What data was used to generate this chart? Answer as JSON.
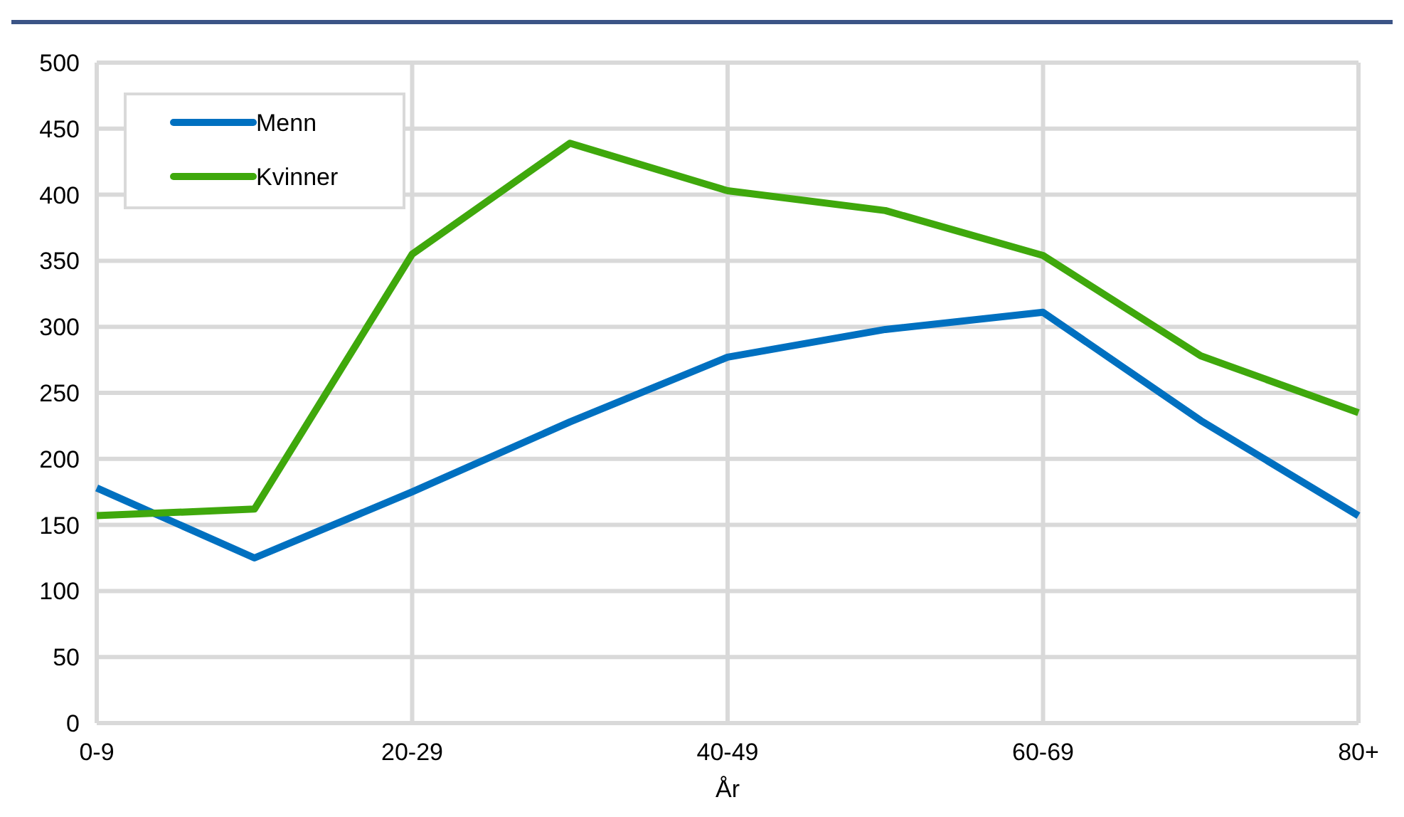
{
  "chart_data": {
    "type": "line",
    "xlabel": "År",
    "categories": [
      "0-9",
      null,
      "20-29",
      null,
      "40-49",
      null,
      "60-69",
      null,
      "80+"
    ],
    "series": [
      {
        "name": "Menn",
        "color": "#0070c0",
        "values": [
          178,
          125,
          175,
          228,
          277,
          298,
          311,
          229,
          157
        ]
      },
      {
        "name": "Kvinner",
        "color": "#3fa80c",
        "values": [
          157,
          162,
          355,
          439,
          403,
          388,
          354,
          278,
          235
        ]
      }
    ],
    "ylim": [
      0,
      500
    ],
    "yticks": [
      0,
      50,
      100,
      150,
      200,
      250,
      300,
      350,
      400,
      450,
      500
    ],
    "grid": true,
    "legend": "top left",
    "line_style": "solid",
    "marker": "none"
  }
}
